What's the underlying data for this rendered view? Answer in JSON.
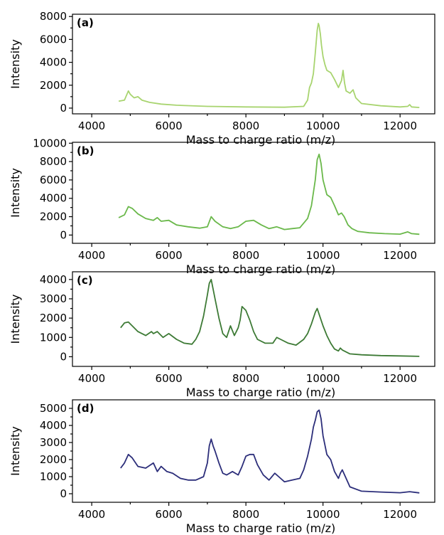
{
  "chart_data": [
    {
      "type": "line",
      "panel_label": "(a)",
      "xlabel": "Mass to charge ratio (m/z)",
      "ylabel": "Intensity",
      "xlim": [
        3500,
        12900
      ],
      "ylim": [
        -500,
        8200
      ],
      "xticks": [
        4000,
        6000,
        8000,
        10000,
        12000
      ],
      "yticks": [
        0,
        2000,
        4000,
        6000,
        8000
      ],
      "color": "#a8d46f",
      "grid": false,
      "series": [
        {
          "x": [
            4700,
            4850,
            4950,
            5000,
            5100,
            5200,
            5300,
            5500,
            5800,
            6200,
            7000,
            8000,
            9000,
            9500,
            9600,
            9650,
            9700,
            9750,
            9800,
            9850,
            9880,
            9900,
            9930,
            9960,
            10000,
            10050,
            10100,
            10200,
            10300,
            10400,
            10480,
            10520,
            10560,
            10600,
            10700,
            10780,
            10850,
            11000,
            11500,
            12000,
            12200,
            12250,
            12300,
            12500
          ],
          "y": [
            600,
            700,
            1500,
            1200,
            900,
            1000,
            700,
            500,
            350,
            250,
            150,
            100,
            80,
            150,
            700,
            1800,
            2200,
            3000,
            4800,
            6800,
            7400,
            7200,
            6500,
            5500,
            4500,
            3800,
            3300,
            3100,
            2500,
            1800,
            2400,
            3300,
            2200,
            1500,
            1300,
            1600,
            900,
            400,
            200,
            100,
            150,
            300,
            100,
            50
          ]
        }
      ]
    },
    {
      "type": "line",
      "panel_label": "(b)",
      "xlabel": "Mass to charge ratio (m/z)",
      "ylabel": "Intensity",
      "xlim": [
        3500,
        12900
      ],
      "ylim": [
        -900,
        10100
      ],
      "xticks": [
        4000,
        6000,
        8000,
        10000,
        12000
      ],
      "yticks": [
        0,
        2000,
        4000,
        6000,
        8000,
        10000
      ],
      "color": "#6ab84a",
      "grid": false,
      "series": [
        {
          "x": [
            4700,
            4850,
            4950,
            5050,
            5200,
            5400,
            5600,
            5700,
            5800,
            6000,
            6200,
            6500,
            6800,
            7000,
            7100,
            7200,
            7400,
            7600,
            7800,
            8000,
            8200,
            8400,
            8600,
            8800,
            9000,
            9200,
            9400,
            9600,
            9700,
            9800,
            9850,
            9900,
            9950,
            10000,
            10100,
            10200,
            10300,
            10400,
            10480,
            10550,
            10650,
            10750,
            10900,
            11200,
            11600,
            12000,
            12200,
            12300,
            12500
          ],
          "y": [
            1900,
            2200,
            3100,
            2900,
            2300,
            1800,
            1600,
            1900,
            1500,
            1600,
            1100,
            900,
            750,
            900,
            2000,
            1500,
            900,
            700,
            900,
            1500,
            1600,
            1100,
            700,
            900,
            600,
            700,
            800,
            1800,
            3200,
            6000,
            8200,
            8800,
            7800,
            6000,
            4400,
            4100,
            3200,
            2200,
            2400,
            2000,
            1100,
            700,
            400,
            250,
            150,
            100,
            350,
            150,
            80
          ]
        }
      ]
    },
    {
      "type": "line",
      "panel_label": "(c)",
      "xlabel": "Mass to charge ratio (m/z)",
      "ylabel": "Intensity",
      "xlim": [
        3500,
        12900
      ],
      "ylim": [
        -500,
        4400
      ],
      "xticks": [
        4000,
        6000,
        8000,
        10000,
        12000
      ],
      "yticks": [
        0,
        1000,
        2000,
        3000,
        4000
      ],
      "color": "#3d7a35",
      "grid": false,
      "series": [
        {
          "x": [
            4750,
            4850,
            4950,
            5050,
            5200,
            5400,
            5550,
            5600,
            5700,
            5850,
            6000,
            6200,
            6400,
            6600,
            6700,
            6800,
            6900,
            7000,
            7050,
            7100,
            7150,
            7200,
            7300,
            7400,
            7500,
            7600,
            7700,
            7800,
            7850,
            7900,
            7950,
            8000,
            8100,
            8200,
            8300,
            8500,
            8700,
            8800,
            8900,
            9100,
            9300,
            9500,
            9600,
            9700,
            9800,
            9850,
            9900,
            10000,
            10100,
            10200,
            10300,
            10400,
            10450,
            10500,
            10700,
            11000,
            11500,
            12000,
            12500
          ],
          "y": [
            1500,
            1750,
            1800,
            1600,
            1300,
            1100,
            1300,
            1200,
            1300,
            1000,
            1200,
            900,
            700,
            650,
            900,
            1300,
            2100,
            3200,
            3800,
            4000,
            3500,
            3000,
            2000,
            1200,
            1000,
            1600,
            1100,
            1500,
            1900,
            2600,
            2500,
            2400,
            1900,
            1300,
            900,
            700,
            700,
            1000,
            900,
            700,
            600,
            900,
            1200,
            1700,
            2300,
            2500,
            2200,
            1600,
            1100,
            700,
            400,
            300,
            450,
            350,
            150,
            100,
            60,
            40,
            20
          ]
        }
      ]
    },
    {
      "type": "line",
      "panel_label": "(d)",
      "xlabel": "Mass to charge ratio (m/z)",
      "ylabel": "Intensity",
      "xlim": [
        3500,
        12900
      ],
      "ylim": [
        -500,
        5500
      ],
      "xticks": [
        4000,
        6000,
        8000,
        10000,
        12000
      ],
      "yticks": [
        0,
        1000,
        2000,
        3000,
        4000,
        5000
      ],
      "color": "#2c2e7a",
      "grid": false,
      "series": [
        {
          "x": [
            4750,
            4850,
            4950,
            5050,
            5200,
            5400,
            5600,
            5700,
            5800,
            5950,
            6100,
            6300,
            6500,
            6700,
            6900,
            7000,
            7050,
            7100,
            7150,
            7200,
            7300,
            7400,
            7500,
            7650,
            7800,
            7900,
            8000,
            8100,
            8200,
            8300,
            8450,
            8600,
            8750,
            8850,
            9000,
            9200,
            9400,
            9500,
            9600,
            9700,
            9750,
            9800,
            9850,
            9900,
            9950,
            10000,
            10100,
            10200,
            10300,
            10400,
            10450,
            10500,
            10600,
            10700,
            11000,
            11500,
            12000,
            12250,
            12500
          ],
          "y": [
            1500,
            1800,
            2300,
            2100,
            1600,
            1500,
            1800,
            1300,
            1600,
            1300,
            1200,
            900,
            800,
            800,
            1000,
            1800,
            2800,
            3200,
            2800,
            2500,
            1800,
            1200,
            1100,
            1300,
            1100,
            1600,
            2200,
            2300,
            2300,
            1700,
            1100,
            800,
            1200,
            1000,
            700,
            800,
            900,
            1400,
            2200,
            3200,
            3900,
            4300,
            4800,
            4900,
            4400,
            3400,
            2300,
            2000,
            1300,
            900,
            1200,
            1400,
            900,
            400,
            150,
            100,
            60,
            120,
            50
          ]
        }
      ]
    }
  ]
}
